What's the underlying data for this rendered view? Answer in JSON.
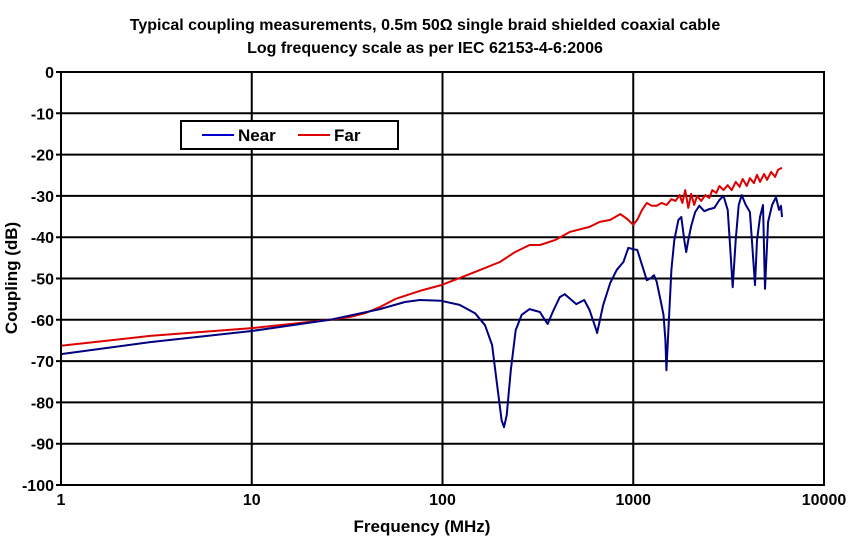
{
  "chart_data": {
    "type": "line",
    "title": "Typical coupling measurements, 0.5m 50Ω single braid shielded coaxial cable",
    "subtitle": "Log frequency scale as per IEC 62153-4-6:2006",
    "xlabel": "Frequency (MHz)",
    "ylabel": "Coupling (dB)",
    "xscale": "log",
    "xlim": [
      1,
      10000
    ],
    "ylim": [
      -100,
      0
    ],
    "xticks": [
      1,
      10,
      100,
      1000,
      10000
    ],
    "xtick_labels": [
      "1",
      "10",
      "100",
      "1000",
      "10000"
    ],
    "yticks": [
      0,
      -10,
      -20,
      -30,
      -40,
      -50,
      -60,
      -70,
      -80,
      -90,
      -100
    ],
    "ytick_labels": [
      "0",
      "-10",
      "-20",
      "-30",
      "-40",
      "-50",
      "-60",
      "-70",
      "-80",
      "-90",
      "-100"
    ],
    "grid": true,
    "legend": {
      "placement": "top-left",
      "entries": [
        "Near",
        "Far"
      ]
    },
    "series": [
      {
        "name": "Near",
        "color": "#000080",
        "points": [
          [
            1,
            -68.3
          ],
          [
            2.93,
            -65.4
          ],
          [
            10,
            -62.7
          ],
          [
            25.7,
            -60.0
          ],
          [
            47,
            -57.4
          ],
          [
            63.5,
            -55.7
          ],
          [
            76,
            -55.2
          ],
          [
            98.5,
            -55.4
          ],
          [
            123,
            -56.4
          ],
          [
            148,
            -58.4
          ],
          [
            167,
            -61.3
          ],
          [
            182,
            -66.1
          ],
          [
            192,
            -74.6
          ],
          [
            204,
            -84.3
          ],
          [
            210,
            -86.0
          ],
          [
            217,
            -83.1
          ],
          [
            228,
            -72.2
          ],
          [
            242,
            -62.5
          ],
          [
            260,
            -58.8
          ],
          [
            286,
            -57.4
          ],
          [
            324,
            -58.1
          ],
          [
            344,
            -60.0
          ],
          [
            356,
            -61.0
          ],
          [
            378,
            -58.1
          ],
          [
            412,
            -54.5
          ],
          [
            437,
            -53.8
          ],
          [
            469,
            -55.0
          ],
          [
            503,
            -56.2
          ],
          [
            553,
            -55.2
          ],
          [
            590,
            -57.6
          ],
          [
            640,
            -62.5
          ],
          [
            646,
            -63.2
          ],
          [
            696,
            -56.4
          ],
          [
            757,
            -51.1
          ],
          [
            820,
            -47.9
          ],
          [
            888,
            -46.0
          ],
          [
            942,
            -42.6
          ],
          [
            1000,
            -42.9
          ],
          [
            1050,
            -43.1
          ],
          [
            1112,
            -46.7
          ],
          [
            1177,
            -50.4
          ],
          [
            1237,
            -49.9
          ],
          [
            1284,
            -49.2
          ],
          [
            1327,
            -50.8
          ],
          [
            1389,
            -55.2
          ],
          [
            1440,
            -58.8
          ],
          [
            1475,
            -64.9
          ],
          [
            1492,
            -72.2
          ],
          [
            1529,
            -62.5
          ],
          [
            1585,
            -47.9
          ],
          [
            1642,
            -40.7
          ],
          [
            1725,
            -35.8
          ],
          [
            1787,
            -35.1
          ],
          [
            1851,
            -40.7
          ],
          [
            1896,
            -43.6
          ],
          [
            1943,
            -40.7
          ],
          [
            2013,
            -37.3
          ],
          [
            2112,
            -33.9
          ],
          [
            2220,
            -32.4
          ],
          [
            2357,
            -33.7
          ],
          [
            2504,
            -33.2
          ],
          [
            2661,
            -32.9
          ],
          [
            2829,
            -31.0
          ],
          [
            2973,
            -30.0
          ],
          [
            3126,
            -33.4
          ],
          [
            3203,
            -40.7
          ],
          [
            3321,
            -52.1
          ],
          [
            3443,
            -40.7
          ],
          [
            3570,
            -32.2
          ],
          [
            3701,
            -29.8
          ],
          [
            3890,
            -32.2
          ],
          [
            4089,
            -33.9
          ],
          [
            4190,
            -40.7
          ],
          [
            4346,
            -51.6
          ],
          [
            4455,
            -40.7
          ],
          [
            4620,
            -35.1
          ],
          [
            4790,
            -32.2
          ],
          [
            4908,
            -52.5
          ],
          [
            5090,
            -36.3
          ],
          [
            5342,
            -32.2
          ],
          [
            5600,
            -30.3
          ],
          [
            5810,
            -33.4
          ],
          [
            5950,
            -32.4
          ],
          [
            6020,
            -35.1
          ]
        ]
      },
      {
        "name": "Far",
        "color": "#dd0000",
        "points": [
          [
            1,
            -66.3
          ],
          [
            2.93,
            -63.9
          ],
          [
            10,
            -62.0
          ],
          [
            25.7,
            -60.0
          ],
          [
            32.8,
            -59.3
          ],
          [
            39.3,
            -58.4
          ],
          [
            47,
            -56.9
          ],
          [
            56.4,
            -55.0
          ],
          [
            63.5,
            -54.2
          ],
          [
            76,
            -53.0
          ],
          [
            98.5,
            -51.6
          ],
          [
            123,
            -49.9
          ],
          [
            158,
            -47.9
          ],
          [
            200,
            -46.0
          ],
          [
            240,
            -43.6
          ],
          [
            286,
            -41.9
          ],
          [
            324,
            -41.9
          ],
          [
            389,
            -40.7
          ],
          [
            467,
            -38.7
          ],
          [
            590,
            -37.5
          ],
          [
            668,
            -36.3
          ],
          [
            757,
            -35.8
          ],
          [
            855,
            -34.4
          ],
          [
            930,
            -35.6
          ],
          [
            1000,
            -37.0
          ],
          [
            1055,
            -35.6
          ],
          [
            1112,
            -33.4
          ],
          [
            1177,
            -31.7
          ],
          [
            1250,
            -32.4
          ],
          [
            1327,
            -32.4
          ],
          [
            1410,
            -31.7
          ],
          [
            1496,
            -32.2
          ],
          [
            1585,
            -30.8
          ],
          [
            1665,
            -31.2
          ],
          [
            1747,
            -29.8
          ],
          [
            1809,
            -31.7
          ],
          [
            1872,
            -28.6
          ],
          [
            1943,
            -32.9
          ],
          [
            2013,
            -29.5
          ],
          [
            2086,
            -32.2
          ],
          [
            2161,
            -30.0
          ],
          [
            2270,
            -31.2
          ],
          [
            2385,
            -29.8
          ],
          [
            2504,
            -30.5
          ],
          [
            2597,
            -28.6
          ],
          [
            2725,
            -29.3
          ],
          [
            2829,
            -27.6
          ],
          [
            2973,
            -28.6
          ],
          [
            3126,
            -27.4
          ],
          [
            3283,
            -28.6
          ],
          [
            3443,
            -26.6
          ],
          [
            3610,
            -27.8
          ],
          [
            3747,
            -25.9
          ],
          [
            3938,
            -27.6
          ],
          [
            4089,
            -25.7
          ],
          [
            4290,
            -26.9
          ],
          [
            4455,
            -24.9
          ],
          [
            4620,
            -26.6
          ],
          [
            4850,
            -24.7
          ],
          [
            5030,
            -26.1
          ],
          [
            5280,
            -24.2
          ],
          [
            5540,
            -25.4
          ],
          [
            5740,
            -23.7
          ],
          [
            6020,
            -23.2
          ]
        ]
      }
    ]
  }
}
